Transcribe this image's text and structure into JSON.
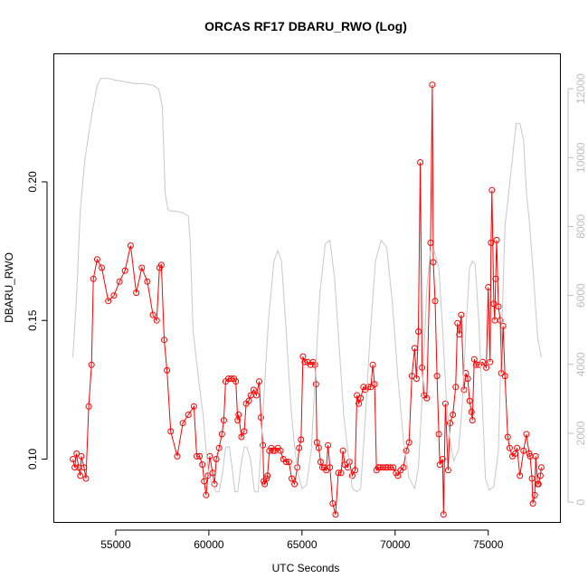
{
  "chart_data": {
    "type": "line",
    "title": "ORCAS RF17 DBARU_RWO (Log)",
    "xlabel": "UTC Seconds",
    "ylabel": "DBARU_RWO",
    "y2label": "",
    "xlim": [
      51700,
      78900
    ],
    "ylim": [
      0.077,
      0.246
    ],
    "y2lim": [
      -600,
      13000
    ],
    "x_ticks": [
      55000,
      60000,
      65000,
      70000,
      75000
    ],
    "x_tick_labels": [
      "55000",
      "60000",
      "65000",
      "70000",
      "75000"
    ],
    "y_ticks": [
      0.1,
      0.15,
      0.2
    ],
    "y_tick_labels": [
      "0.10",
      "0.15",
      "0.20"
    ],
    "y2_ticks": [
      0,
      2000,
      4000,
      6000,
      8000,
      10000,
      12000
    ],
    "y2_tick_labels": [
      "0",
      "2000",
      "4000",
      "6000",
      "8000",
      "10000",
      "12000"
    ],
    "grid": false,
    "series": [
      {
        "color": "#ff0000",
        "marker": "open-circle",
        "axis": "left",
        "points": [
          [
            52700,
            0.1
          ],
          [
            52800,
            0.097
          ],
          [
            52900,
            0.102
          ],
          [
            53000,
            0.097
          ],
          [
            53100,
            0.094
          ],
          [
            53150,
            0.101
          ],
          [
            53300,
            0.097
          ],
          [
            53400,
            0.093
          ],
          [
            53550,
            0.119
          ],
          [
            53700,
            0.134
          ],
          [
            53800,
            0.165
          ],
          [
            54000,
            0.172
          ],
          [
            54250,
            0.169
          ],
          [
            54600,
            0.157
          ],
          [
            54900,
            0.159
          ],
          [
            55200,
            0.164
          ],
          [
            55500,
            0.168
          ],
          [
            55800,
            0.177
          ],
          [
            56100,
            0.16
          ],
          [
            56400,
            0.169
          ],
          [
            56700,
            0.164
          ],
          [
            57000,
            0.152
          ],
          [
            57200,
            0.15
          ],
          [
            57350,
            0.169
          ],
          [
            57450,
            0.17
          ],
          [
            57600,
            0.143
          ],
          [
            57750,
            0.132
          ],
          [
            57950,
            0.11
          ],
          [
            58300,
            0.101
          ],
          [
            58600,
            0.113
          ],
          [
            58900,
            0.116
          ],
          [
            59200,
            0.119
          ],
          [
            59350,
            0.101
          ],
          [
            59500,
            0.101
          ],
          [
            59650,
            0.098
          ],
          [
            59750,
            0.092
          ],
          [
            59850,
            0.087
          ],
          [
            59950,
            0.094
          ],
          [
            60050,
            0.101
          ],
          [
            60200,
            0.095
          ],
          [
            60300,
            0.091
          ],
          [
            60400,
            0.1
          ],
          [
            60550,
            0.104
          ],
          [
            60700,
            0.109
          ],
          [
            60800,
            0.114
          ],
          [
            60900,
            0.128
          ],
          [
            61050,
            0.129
          ],
          [
            61200,
            0.129
          ],
          [
            61350,
            0.129
          ],
          [
            61450,
            0.128
          ],
          [
            61550,
            0.114
          ],
          [
            61600,
            0.116
          ],
          [
            61750,
            0.108
          ],
          [
            61900,
            0.11
          ],
          [
            62000,
            0.12
          ],
          [
            62150,
            0.121
          ],
          [
            62250,
            0.123
          ],
          [
            62400,
            0.125
          ],
          [
            62550,
            0.123
          ],
          [
            62700,
            0.128
          ],
          [
            62800,
            0.115
          ],
          [
            62900,
            0.105
          ],
          [
            62950,
            0.092
          ],
          [
            63000,
            0.091
          ],
          [
            63100,
            0.093
          ],
          [
            63150,
            0.094
          ],
          [
            63250,
            0.103
          ],
          [
            63350,
            0.104
          ],
          [
            63450,
            0.103
          ],
          [
            63550,
            0.103
          ],
          [
            63700,
            0.104
          ],
          [
            63850,
            0.103
          ],
          [
            64000,
            0.1
          ],
          [
            64150,
            0.099
          ],
          [
            64300,
            0.099
          ],
          [
            64450,
            0.093
          ],
          [
            64600,
            0.091
          ],
          [
            64750,
            0.097
          ],
          [
            64850,
            0.104
          ],
          [
            64950,
            0.107
          ],
          [
            65050,
            0.137
          ],
          [
            65150,
            0.135
          ],
          [
            65300,
            0.135
          ],
          [
            65450,
            0.134
          ],
          [
            65600,
            0.135
          ],
          [
            65700,
            0.134
          ],
          [
            65750,
            0.127
          ],
          [
            65800,
            0.106
          ],
          [
            65900,
            0.104
          ],
          [
            66000,
            0.099
          ],
          [
            66100,
            0.097
          ],
          [
            66200,
            0.097
          ],
          [
            66300,
            0.096
          ],
          [
            66400,
            0.105
          ],
          [
            66500,
            0.097
          ],
          [
            66650,
            0.084
          ],
          [
            66800,
            0.08
          ],
          [
            66950,
            0.095
          ],
          [
            67100,
            0.095
          ],
          [
            67200,
            0.103
          ],
          [
            67300,
            0.098
          ],
          [
            67450,
            0.097
          ],
          [
            67550,
            0.099
          ],
          [
            67700,
            0.094
          ],
          [
            67850,
            0.096
          ],
          [
            67950,
            0.123
          ],
          [
            68050,
            0.12
          ],
          [
            68150,
            0.122
          ],
          [
            68300,
            0.126
          ],
          [
            68400,
            0.125
          ],
          [
            68550,
            0.126
          ],
          [
            68700,
            0.126
          ],
          [
            68800,
            0.134
          ],
          [
            68900,
            0.127
          ],
          [
            69000,
            0.096
          ],
          [
            69100,
            0.097
          ],
          [
            69200,
            0.097
          ],
          [
            69350,
            0.097
          ],
          [
            69500,
            0.097
          ],
          [
            69600,
            0.097
          ],
          [
            69750,
            0.097
          ],
          [
            69900,
            0.097
          ],
          [
            70050,
            0.095
          ],
          [
            70150,
            0.094
          ],
          [
            70300,
            0.096
          ],
          [
            70450,
            0.097
          ],
          [
            70600,
            0.103
          ],
          [
            70750,
            0.106
          ],
          [
            70900,
            0.13
          ],
          [
            71050,
            0.14
          ],
          [
            71150,
            0.129
          ],
          [
            71250,
            0.146
          ],
          [
            71350,
            0.207
          ],
          [
            71450,
            0.133
          ],
          [
            71550,
            0.123
          ],
          [
            71700,
            0.122
          ],
          [
            71900,
            0.178
          ],
          [
            72000,
            0.235
          ],
          [
            72050,
            0.171
          ],
          [
            72150,
            0.157
          ],
          [
            72250,
            0.13
          ],
          [
            72350,
            0.109
          ],
          [
            72400,
            0.098
          ],
          [
            72550,
            0.1
          ],
          [
            72600,
            0.08
          ],
          [
            72700,
            0.12
          ],
          [
            72850,
            0.096
          ],
          [
            72950,
            0.113
          ],
          [
            73100,
            0.116
          ],
          [
            73250,
            0.126
          ],
          [
            73350,
            0.149
          ],
          [
            73450,
            0.145
          ],
          [
            73550,
            0.152
          ],
          [
            73700,
            0.125
          ],
          [
            73800,
            0.131
          ],
          [
            73900,
            0.129
          ],
          [
            74000,
            0.121
          ],
          [
            74100,
            0.117
          ],
          [
            74150,
            0.114
          ],
          [
            74250,
            0.136
          ],
          [
            74350,
            0.134
          ],
          [
            74500,
            0.134
          ],
          [
            74700,
            0.135
          ],
          [
            74900,
            0.133
          ],
          [
            75000,
            0.162
          ],
          [
            75100,
            0.135
          ],
          [
            75150,
            0.178
          ],
          [
            75200,
            0.197
          ],
          [
            75300,
            0.156
          ],
          [
            75350,
            0.15
          ],
          [
            75400,
            0.165
          ],
          [
            75450,
            0.179
          ],
          [
            75550,
            0.155
          ],
          [
            75650,
            0.15
          ],
          [
            75700,
            0.131
          ],
          [
            75800,
            0.148
          ],
          [
            75900,
            0.13
          ],
          [
            76050,
            0.108
          ],
          [
            76150,
            0.104
          ],
          [
            76300,
            0.101
          ],
          [
            76450,
            0.102
          ],
          [
            76550,
            0.104
          ],
          [
            76700,
            0.094
          ],
          [
            76900,
            0.103
          ],
          [
            77050,
            0.109
          ],
          [
            77200,
            0.102
          ],
          [
            77250,
            0.101
          ],
          [
            77350,
            0.093
          ],
          [
            77400,
            0.084
          ],
          [
            77500,
            0.087
          ],
          [
            77550,
            0.101
          ],
          [
            77650,
            0.091
          ],
          [
            77700,
            0.091
          ],
          [
            77800,
            0.094
          ],
          [
            77850,
            0.097
          ]
        ]
      },
      {
        "color": "#c8c8c8",
        "marker": "none",
        "axis": "right",
        "points": [
          [
            52700,
            4200
          ],
          [
            52900,
            6000
          ],
          [
            53100,
            8500
          ],
          [
            53350,
            10000
          ],
          [
            53700,
            11200
          ],
          [
            54000,
            12100
          ],
          [
            54200,
            12300
          ],
          [
            54600,
            12300
          ],
          [
            55000,
            12250
          ],
          [
            55500,
            12200
          ],
          [
            56000,
            12150
          ],
          [
            56500,
            12150
          ],
          [
            57000,
            12100
          ],
          [
            57300,
            12000
          ],
          [
            57500,
            11500
          ],
          [
            57650,
            9000
          ],
          [
            57800,
            8500
          ],
          [
            57950,
            8450
          ],
          [
            58200,
            8450
          ],
          [
            58600,
            8400
          ],
          [
            58900,
            8300
          ],
          [
            59000,
            7500
          ],
          [
            59150,
            5000
          ],
          [
            59400,
            3800
          ],
          [
            59700,
            2500
          ],
          [
            59850,
            1500
          ],
          [
            60000,
            800
          ],
          [
            60200,
            500
          ],
          [
            60400,
            300
          ],
          [
            60550,
            300
          ],
          [
            60750,
            900
          ],
          [
            60900,
            1600
          ],
          [
            61100,
            1600
          ],
          [
            61250,
            1000
          ],
          [
            61400,
            300
          ],
          [
            61550,
            300
          ],
          [
            61700,
            1000
          ],
          [
            61900,
            1600
          ],
          [
            62050,
            1600
          ],
          [
            62250,
            1200
          ],
          [
            62450,
            300
          ],
          [
            62650,
            300
          ],
          [
            62800,
            1600
          ],
          [
            62950,
            3000
          ],
          [
            63200,
            5300
          ],
          [
            63500,
            7000
          ],
          [
            63700,
            7300
          ],
          [
            63900,
            7000
          ],
          [
            64150,
            5000
          ],
          [
            64400,
            2800
          ],
          [
            64600,
            1600
          ],
          [
            64800,
            800
          ],
          [
            65000,
            400
          ],
          [
            65250,
            500
          ],
          [
            65500,
            1500
          ],
          [
            65700,
            3500
          ],
          [
            65950,
            6000
          ],
          [
            66250,
            7500
          ],
          [
            66500,
            7600
          ],
          [
            66750,
            6500
          ],
          [
            67000,
            4500
          ],
          [
            67250,
            2500
          ],
          [
            67500,
            1300
          ],
          [
            67700,
            400
          ],
          [
            67950,
            300
          ],
          [
            68150,
            400
          ],
          [
            68400,
            2400
          ],
          [
            68650,
            4800
          ],
          [
            68950,
            7000
          ],
          [
            69250,
            7600
          ],
          [
            69550,
            7400
          ],
          [
            69850,
            5800
          ],
          [
            70150,
            3600
          ],
          [
            70450,
            1800
          ],
          [
            70750,
            700
          ],
          [
            71050,
            400
          ],
          [
            71250,
            1000
          ],
          [
            71450,
            3000
          ],
          [
            71700,
            6200
          ],
          [
            71900,
            7300
          ],
          [
            72100,
            7300
          ],
          [
            72350,
            6800
          ],
          [
            72550,
            5000
          ],
          [
            72750,
            3000
          ],
          [
            72950,
            1800
          ],
          [
            73150,
            1200
          ],
          [
            73400,
            1500
          ],
          [
            73600,
            2800
          ],
          [
            73800,
            5000
          ],
          [
            74000,
            6800
          ],
          [
            74150,
            7000
          ],
          [
            74300,
            6900
          ],
          [
            74500,
            5200
          ],
          [
            74700,
            2700
          ],
          [
            74850,
            700
          ],
          [
            75050,
            350
          ],
          [
            75300,
            450
          ],
          [
            75550,
            1500
          ],
          [
            75700,
            4500
          ],
          [
            75900,
            8000
          ],
          [
            76100,
            9000
          ],
          [
            76300,
            10000
          ],
          [
            76500,
            11000
          ],
          [
            76700,
            11000
          ],
          [
            76900,
            10500
          ],
          [
            77050,
            9000
          ],
          [
            77200,
            8200
          ],
          [
            77400,
            6800
          ],
          [
            77650,
            4800
          ],
          [
            77850,
            4200
          ]
        ]
      }
    ]
  }
}
